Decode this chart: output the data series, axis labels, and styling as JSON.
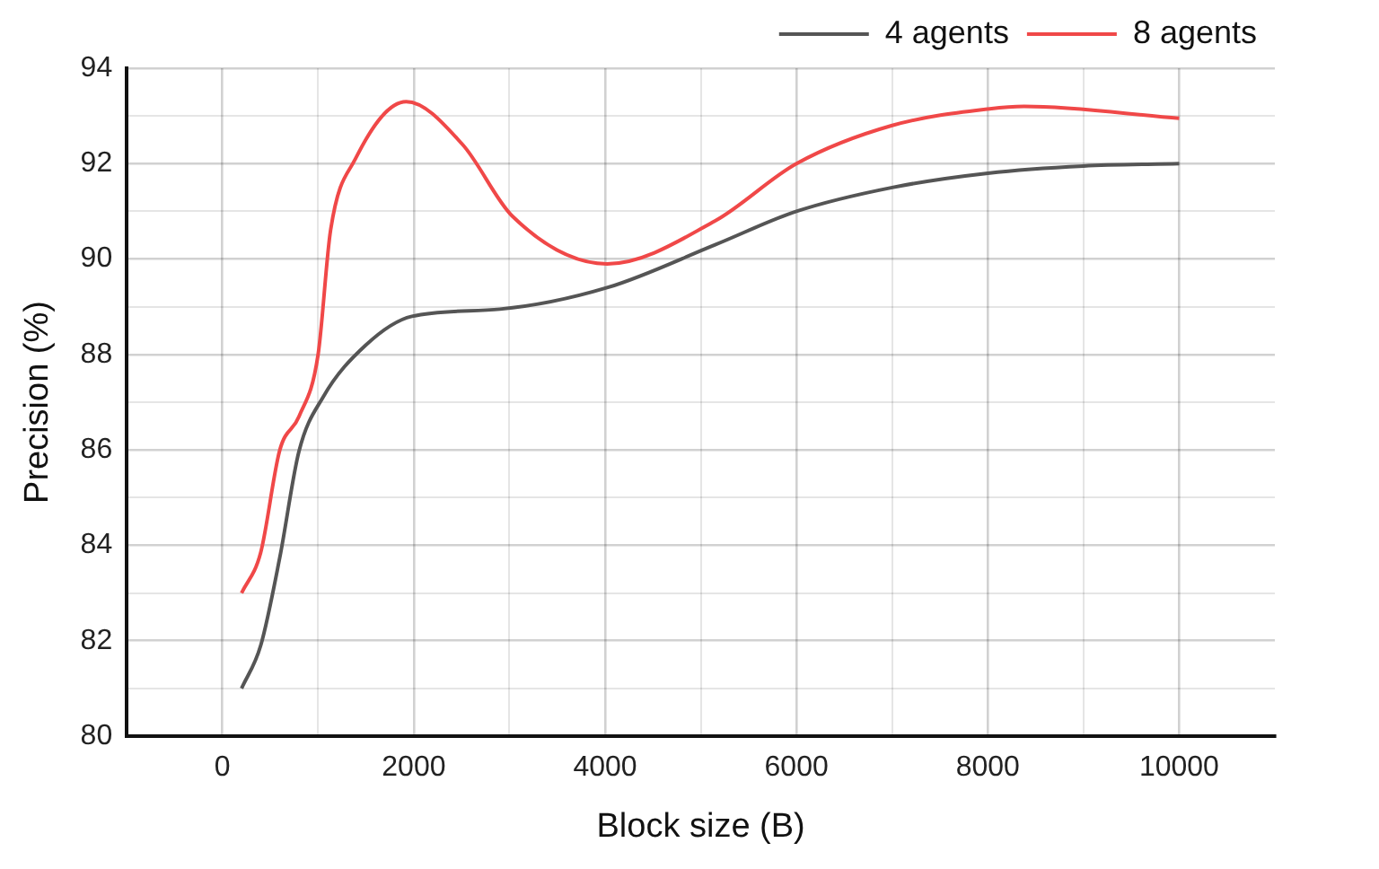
{
  "chart_data": {
    "type": "line",
    "xlabel": "Block size (B)",
    "ylabel": "Precision (%)",
    "xlim": [
      -1000,
      11000
    ],
    "xticks": [
      0,
      {
        "value": 1000,
        "label": null
      },
      2000,
      {
        "value": 3000,
        "label": null
      },
      4000,
      {
        "value": 5000,
        "label": null
      },
      6000,
      {
        "value": 7000,
        "label": null
      },
      8000,
      {
        "value": 9000,
        "label": null
      },
      10000
    ],
    "ylim": [
      80,
      94
    ],
    "yticks": [
      80,
      {
        "value": 81,
        "label": null
      },
      82,
      {
        "value": 83,
        "label": null
      },
      84,
      {
        "value": 85,
        "label": null
      },
      86,
      {
        "value": 87,
        "label": null
      },
      88,
      {
        "value": 89,
        "label": null
      },
      90,
      {
        "value": 91,
        "label": null
      },
      92,
      {
        "value": 93,
        "label": null
      },
      94
    ],
    "grid": true,
    "legend": "top right",
    "marker": "none",
    "line_style": "solid",
    "series": [
      {
        "name": "4 agents",
        "color": "#555555",
        "x": [
          200,
          400,
          600,
          800,
          1050,
          1500,
          1980,
          2900,
          4020,
          5150,
          6000,
          7000,
          8000,
          9000,
          10000
        ],
        "values": [
          81.0,
          81.9,
          83.75,
          85.97,
          87.1,
          88.2,
          88.8,
          88.95,
          89.4,
          90.3,
          91.0,
          91.5,
          91.8,
          91.95,
          92.0
        ]
      },
      {
        "name": "8 agents",
        "color": "#f04848",
        "x": [
          200,
          400,
          600,
          800,
          1000,
          1130,
          1390,
          1920,
          2510,
          3030,
          4020,
          5150,
          6000,
          7000,
          8020,
          8380,
          10000
        ],
        "values": [
          83.0,
          83.85,
          86.0,
          86.7,
          88.0,
          90.6,
          92.1,
          93.3,
          92.4,
          90.9,
          89.9,
          90.8,
          92.0,
          92.8,
          93.15,
          93.2,
          92.95
        ]
      }
    ]
  }
}
